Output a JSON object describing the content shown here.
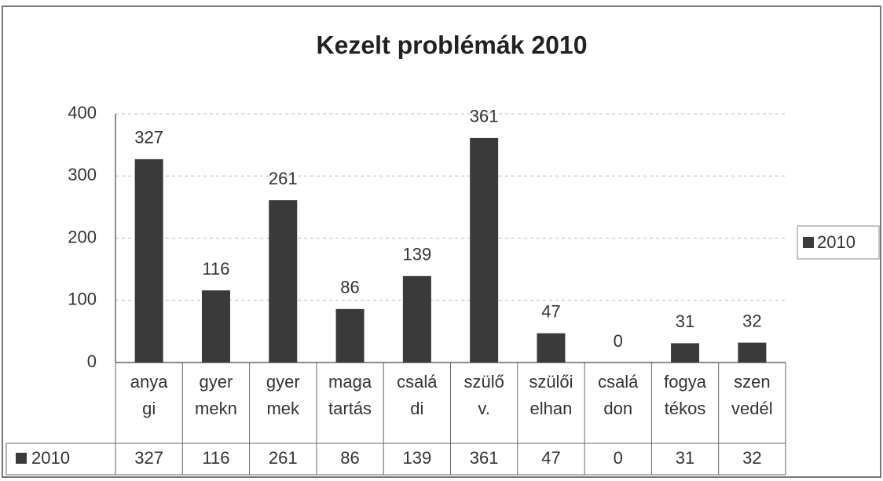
{
  "chart_data": {
    "type": "bar",
    "title": "Kezelt problémák 2010",
    "categories": [
      [
        "anya",
        "gi"
      ],
      [
        "gyer",
        "mekn"
      ],
      [
        "gyer",
        "mek"
      ],
      [
        "maga",
        "tartás"
      ],
      [
        "csalá",
        "di"
      ],
      [
        "szülő",
        "v."
      ],
      [
        "szülői",
        "elhan"
      ],
      [
        "csalá",
        "don"
      ],
      [
        "fogya",
        "tékos"
      ],
      [
        "szen",
        "vedél"
      ]
    ],
    "series": [
      {
        "name": "2010",
        "color": "#3a3a3a",
        "values": [
          327,
          116,
          261,
          86,
          139,
          361,
          47,
          0,
          31,
          32
        ]
      }
    ],
    "ylim": [
      0,
      400
    ],
    "yticks": [
      0,
      100,
      200,
      300,
      400
    ],
    "grid": true,
    "legend": "right",
    "data_table": true
  }
}
